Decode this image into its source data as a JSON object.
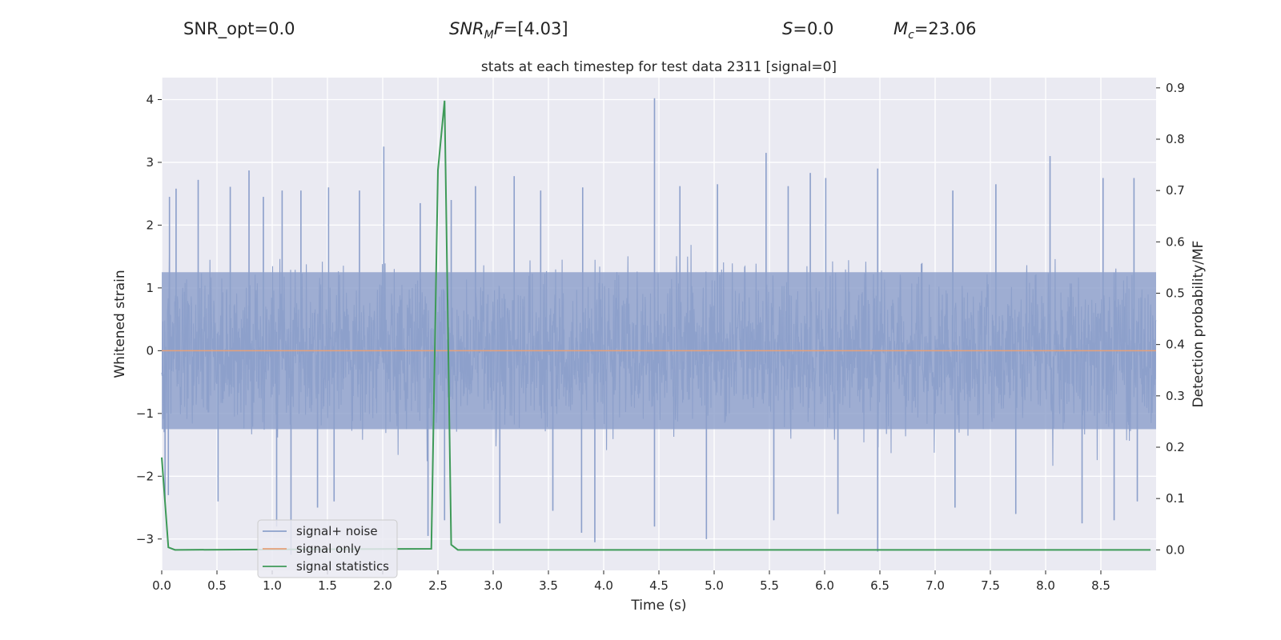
{
  "header": {
    "snr_opt": "SNR_opt=0.0",
    "snr_mf_sym": "SNR",
    "snr_mf_sub": "M",
    "snr_mf_f": "F",
    "snr_mf_val": "=[4.03]",
    "s_sym": "S",
    "s_val": "=0.0",
    "mc_sym": "M",
    "mc_sub": "c",
    "mc_val": "=23.06"
  },
  "chart_data": {
    "type": "line",
    "title": "stats at each timestep for test data 2311 [signal=0]",
    "xlabel": "Time (s)",
    "ylabel": "Whitened strain",
    "y2label": "Detection probability/MF",
    "xlim": [
      0,
      9.0
    ],
    "ylim": [
      -3.5,
      4.35
    ],
    "y2lim": [
      -0.04,
      0.92
    ],
    "xticks": [
      0.0,
      0.5,
      1.0,
      1.5,
      2.0,
      2.5,
      3.0,
      3.5,
      4.0,
      4.5,
      5.0,
      5.5,
      6.0,
      6.5,
      7.0,
      7.5,
      8.0,
      8.5
    ],
    "xtick_labels": [
      "0.0",
      "0.5",
      "1.0",
      "1.5",
      "2.0",
      "2.5",
      "3.0",
      "3.5",
      "4.0",
      "4.5",
      "5.0",
      "5.5",
      "6.0",
      "6.5",
      "7.0",
      "7.5",
      "8.0",
      "8.5"
    ],
    "yticks": [
      -3,
      -2,
      -1,
      0,
      1,
      2,
      3,
      4
    ],
    "ytick_labels": [
      "−3",
      "−2",
      "−1",
      "0",
      "1",
      "2",
      "3",
      "4"
    ],
    "y2ticks": [
      0.0,
      0.1,
      0.2,
      0.3,
      0.4,
      0.5,
      0.6,
      0.7,
      0.8,
      0.9
    ],
    "y2tick_labels": [
      "0.0",
      "0.1",
      "0.2",
      "0.3",
      "0.4",
      "0.5",
      "0.6",
      "0.7",
      "0.8",
      "0.9"
    ],
    "grid": true,
    "legend_position": "lower-left",
    "colors": {
      "noise": "#8da0cb",
      "signal": "#e5a07a",
      "stat": "#3e9a58",
      "background": "#eaeaf2",
      "grid": "#ffffff"
    },
    "series": [
      {
        "name": "signal+ noise",
        "axis": "left",
        "kind": "noise",
        "envelope_approx": {
          "typical_abs": 1.4,
          "max": 4.02,
          "min": -3.2
        },
        "spikes": [
          {
            "x": 0.07,
            "y": 2.45
          },
          {
            "x": 0.13,
            "y": 2.58
          },
          {
            "x": 0.33,
            "y": 2.72
          },
          {
            "x": 0.62,
            "y": 2.61
          },
          {
            "x": 0.79,
            "y": 2.87
          },
          {
            "x": 0.92,
            "y": 2.45
          },
          {
            "x": 1.09,
            "y": 2.55
          },
          {
            "x": 1.26,
            "y": 2.55
          },
          {
            "x": 1.51,
            "y": 2.6
          },
          {
            "x": 1.79,
            "y": 2.55
          },
          {
            "x": 2.01,
            "y": 3.25
          },
          {
            "x": 2.34,
            "y": 2.35
          },
          {
            "x": 2.62,
            "y": 2.4
          },
          {
            "x": 2.84,
            "y": 2.62
          },
          {
            "x": 3.19,
            "y": 2.78
          },
          {
            "x": 3.43,
            "y": 2.55
          },
          {
            "x": 3.81,
            "y": 2.6
          },
          {
            "x": 4.46,
            "y": 4.02
          },
          {
            "x": 4.69,
            "y": 2.62
          },
          {
            "x": 5.03,
            "y": 2.65
          },
          {
            "x": 5.47,
            "y": 3.15
          },
          {
            "x": 5.67,
            "y": 2.62
          },
          {
            "x": 5.87,
            "y": 2.83
          },
          {
            "x": 6.01,
            "y": 2.75
          },
          {
            "x": 6.48,
            "y": 2.9
          },
          {
            "x": 7.16,
            "y": 2.55
          },
          {
            "x": 7.55,
            "y": 2.65
          },
          {
            "x": 8.04,
            "y": 3.1
          },
          {
            "x": 8.52,
            "y": 2.75
          },
          {
            "x": 8.8,
            "y": 2.75
          },
          {
            "x": 0.03,
            "y": -2.4
          },
          {
            "x": 0.06,
            "y": -2.3
          },
          {
            "x": 0.51,
            "y": -2.4
          },
          {
            "x": 1.04,
            "y": -2.8
          },
          {
            "x": 1.17,
            "y": -3.25
          },
          {
            "x": 1.41,
            "y": -2.5
          },
          {
            "x": 1.56,
            "y": -2.4
          },
          {
            "x": 2.41,
            "y": -2.95
          },
          {
            "x": 2.56,
            "y": -2.7
          },
          {
            "x": 3.06,
            "y": -2.75
          },
          {
            "x": 3.54,
            "y": -2.55
          },
          {
            "x": 3.8,
            "y": -2.9
          },
          {
            "x": 3.92,
            "y": -3.05
          },
          {
            "x": 4.46,
            "y": -2.8
          },
          {
            "x": 4.93,
            "y": -3.0
          },
          {
            "x": 5.54,
            "y": -2.7
          },
          {
            "x": 6.12,
            "y": -2.6
          },
          {
            "x": 6.48,
            "y": -3.2
          },
          {
            "x": 7.18,
            "y": -2.5
          },
          {
            "x": 7.73,
            "y": -2.6
          },
          {
            "x": 8.33,
            "y": -2.75
          },
          {
            "x": 8.62,
            "y": -2.7
          },
          {
            "x": 8.83,
            "y": -2.4
          }
        ]
      },
      {
        "name": "signal only",
        "axis": "left",
        "kind": "line",
        "x": [
          0.0,
          9.0
        ],
        "y": [
          0.0,
          0.0
        ]
      },
      {
        "name": "signal statistics",
        "axis": "right",
        "kind": "line",
        "x": [
          0.0,
          0.06,
          0.12,
          2.44,
          2.5,
          2.56,
          2.62,
          2.68,
          8.95
        ],
        "y": [
          0.18,
          0.005,
          0.0,
          0.002,
          0.74,
          0.875,
          0.01,
          0.0,
          0.0
        ]
      }
    ]
  }
}
